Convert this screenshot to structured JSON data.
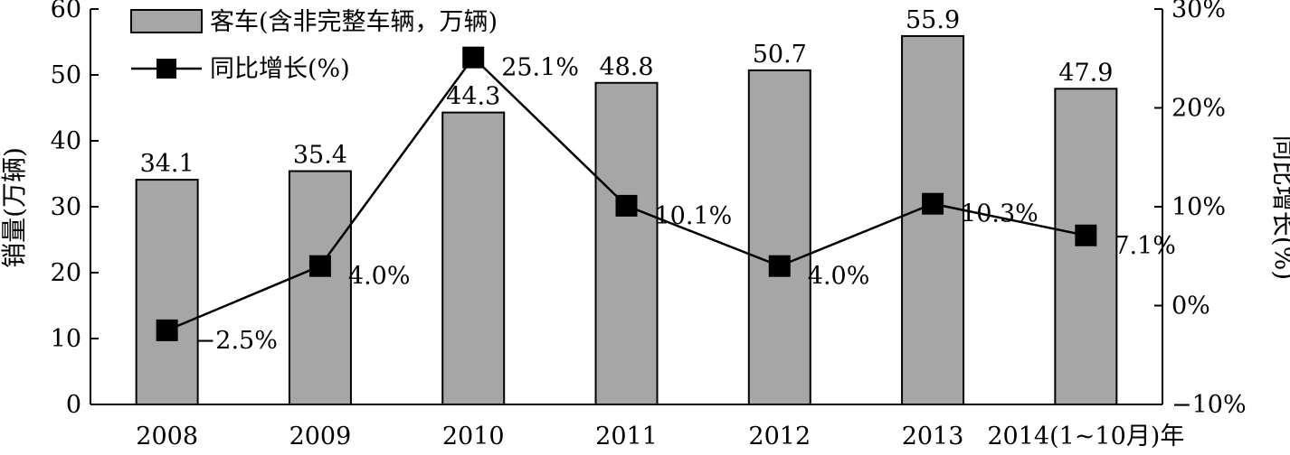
{
  "chart_data": {
    "type": "bar",
    "categories": [
      "2008",
      "2009",
      "2010",
      "2011",
      "2012",
      "2013",
      "2014(1~10月)年"
    ],
    "series": [
      {
        "name": "客车(含非完整车辆，万辆)",
        "type": "bar",
        "axis": "left",
        "values": [
          34.1,
          35.4,
          44.3,
          48.8,
          50.7,
          55.9,
          47.9
        ],
        "labels": [
          "34.1",
          "35.4",
          "44.3",
          "48.8",
          "50.7",
          "55.9",
          "47.9"
        ],
        "color": "#a6a6a6"
      },
      {
        "name": "同比增长(%)",
        "type": "line",
        "axis": "right",
        "values": [
          -2.5,
          4.0,
          25.1,
          10.1,
          4.0,
          10.3,
          7.1
        ],
        "labels": [
          "−2.5%",
          "4.0%",
          "25.1%",
          "10.1%",
          "4.0%",
          "10.3%",
          "7.1%"
        ],
        "color": "#000000"
      }
    ],
    "ylabel": "销量(万辆)",
    "y2label": "同比增长(%)",
    "ylim": [
      0,
      60
    ],
    "y2lim": [
      -10,
      30
    ],
    "yticks": [
      "0",
      "10",
      "20",
      "30",
      "40",
      "50",
      "60"
    ],
    "y2ticks": [
      "−10%",
      "0%",
      "10%",
      "20%",
      "30%"
    ],
    "legend_position": "top-left",
    "grid": false
  }
}
